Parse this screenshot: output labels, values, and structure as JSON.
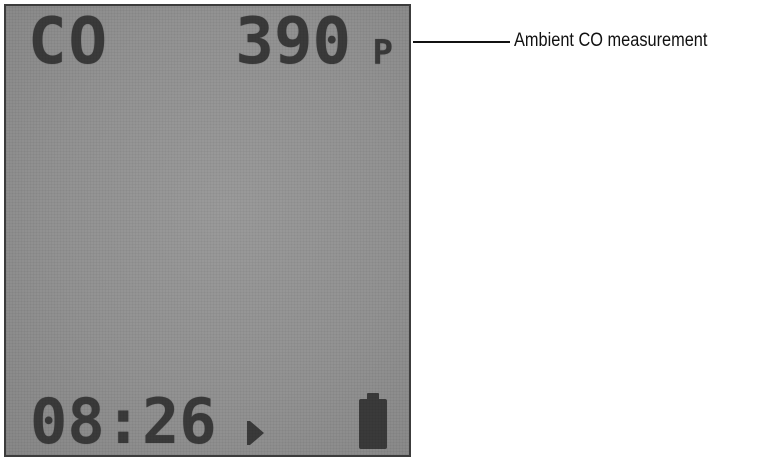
{
  "display": {
    "gas_name": "CO",
    "reading_value": "390",
    "reading_unit": "P",
    "clock": "08:26",
    "status_icon": "play-indicator-icon",
    "battery_icon": "battery-full-icon"
  },
  "callout": {
    "label": "Ambient CO measurement"
  },
  "colors": {
    "lcd_background": "#929292",
    "lcd_segment": "#3a3a3a",
    "callout_text": "#111111"
  }
}
